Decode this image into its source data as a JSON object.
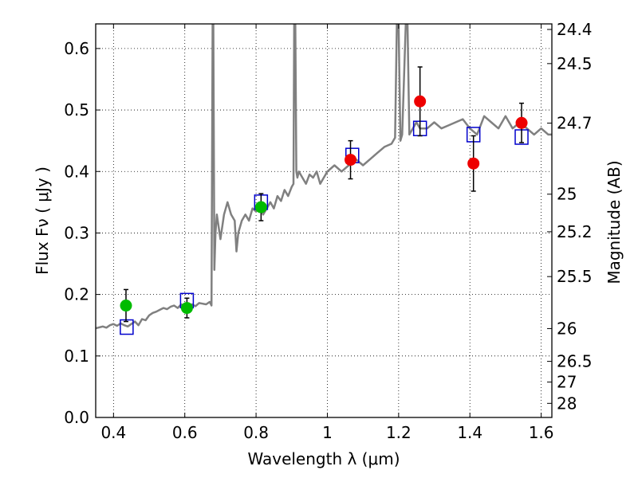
{
  "chart_data": {
    "type": "scatter",
    "xlabel": "Wavelength  λ (μm)",
    "ylabel": "Flux  Fν  ( μJy )",
    "y2label": "Magnitude (AB)",
    "xlim": [
      0.35,
      1.63
    ],
    "ylim": [
      0.0,
      0.64
    ],
    "grid": true,
    "x_ticks": [
      0.4,
      0.6,
      0.8,
      1.0,
      1.2,
      1.4,
      1.6
    ],
    "x_tick_labels": [
      "0.4",
      "0.6",
      "0.8",
      "1",
      "1.2",
      "1.4",
      "1.6"
    ],
    "y_ticks": [
      0.0,
      0.1,
      0.2,
      0.3,
      0.4,
      0.5,
      0.6
    ],
    "y_tick_labels": [
      "0.0",
      "0.1",
      "0.2",
      "0.3",
      "0.4",
      "0.5",
      "0.6"
    ],
    "mag_ticks": [
      24.4,
      24.5,
      24.7,
      25,
      25.2,
      25.5,
      26,
      26.5,
      27,
      28
    ],
    "mag_tick_labels": [
      "24.4",
      "24.5",
      "24.7",
      "25",
      "25.2",
      "25.5",
      "26",
      "26.5",
      "27",
      "28"
    ],
    "series": [
      {
        "kind": "points-with-errors",
        "color": "#00bb00",
        "points": [
          {
            "x": 0.435,
            "y": 0.182,
            "err": 0.026
          },
          {
            "x": 0.606,
            "y": 0.178,
            "err": 0.016
          },
          {
            "x": 0.814,
            "y": 0.342,
            "err": 0.022
          }
        ]
      },
      {
        "kind": "points-with-errors",
        "color": "#ee0000",
        "points": [
          {
            "x": 1.065,
            "y": 0.419,
            "err": 0.031
          },
          {
            "x": 1.26,
            "y": 0.514,
            "err": 0.056
          },
          {
            "x": 1.41,
            "y": 0.413,
            "err": 0.045
          },
          {
            "x": 1.545,
            "y": 0.479,
            "err": 0.032
          }
        ]
      },
      {
        "kind": "open-squares",
        "color": "#0000cc",
        "points": [
          {
            "x": 0.437,
            "y": 0.147
          },
          {
            "x": 0.606,
            "y": 0.19
          },
          {
            "x": 0.814,
            "y": 0.35
          },
          {
            "x": 1.07,
            "y": 0.426
          },
          {
            "x": 1.26,
            "y": 0.47
          },
          {
            "x": 1.41,
            "y": 0.46
          },
          {
            "x": 1.545,
            "y": 0.456
          }
        ]
      },
      {
        "kind": "spectrum-line",
        "color": "#808080",
        "x": [
          0.35,
          0.37,
          0.38,
          0.39,
          0.4,
          0.41,
          0.42,
          0.43,
          0.44,
          0.45,
          0.46,
          0.47,
          0.48,
          0.49,
          0.5,
          0.51,
          0.52,
          0.53,
          0.54,
          0.55,
          0.56,
          0.57,
          0.58,
          0.59,
          0.6,
          0.61,
          0.62,
          0.63,
          0.64,
          0.65,
          0.66,
          0.67,
          0.675,
          0.678,
          0.68,
          0.683,
          0.686,
          0.69,
          0.7,
          0.71,
          0.72,
          0.73,
          0.74,
          0.745,
          0.75,
          0.76,
          0.77,
          0.78,
          0.79,
          0.8,
          0.81,
          0.82,
          0.83,
          0.84,
          0.85,
          0.86,
          0.87,
          0.88,
          0.89,
          0.9,
          0.905,
          0.907,
          0.91,
          0.913,
          0.916,
          0.92,
          0.93,
          0.94,
          0.95,
          0.96,
          0.97,
          0.98,
          0.99,
          1.0,
          1.02,
          1.04,
          1.06,
          1.08,
          1.1,
          1.12,
          1.14,
          1.16,
          1.18,
          1.19,
          1.195,
          1.2,
          1.205,
          1.21,
          1.22,
          1.225,
          1.23,
          1.24,
          1.25,
          1.26,
          1.28,
          1.3,
          1.32,
          1.34,
          1.36,
          1.38,
          1.4,
          1.42,
          1.44,
          1.46,
          1.48,
          1.5,
          1.52,
          1.54,
          1.56,
          1.58,
          1.6,
          1.62,
          1.63
        ],
        "y": [
          0.145,
          0.148,
          0.146,
          0.15,
          0.152,
          0.149,
          0.153,
          0.15,
          0.148,
          0.152,
          0.156,
          0.15,
          0.16,
          0.158,
          0.166,
          0.17,
          0.172,
          0.175,
          0.178,
          0.176,
          0.18,
          0.182,
          0.178,
          0.184,
          0.182,
          0.183,
          0.184,
          0.181,
          0.186,
          0.185,
          0.184,
          0.188,
          0.182,
          0.64,
          0.64,
          0.24,
          0.3,
          0.33,
          0.29,
          0.33,
          0.35,
          0.33,
          0.32,
          0.27,
          0.3,
          0.32,
          0.33,
          0.32,
          0.34,
          0.335,
          0.345,
          0.33,
          0.34,
          0.35,
          0.34,
          0.36,
          0.352,
          0.37,
          0.36,
          0.375,
          0.38,
          0.64,
          0.64,
          0.4,
          0.39,
          0.4,
          0.39,
          0.38,
          0.395,
          0.39,
          0.4,
          0.38,
          0.39,
          0.4,
          0.41,
          0.4,
          0.41,
          0.42,
          0.41,
          0.42,
          0.43,
          0.44,
          0.445,
          0.455,
          0.64,
          0.64,
          0.45,
          0.46,
          0.64,
          0.64,
          0.46,
          0.47,
          0.48,
          0.47,
          0.47,
          0.48,
          0.47,
          0.475,
          0.48,
          0.485,
          0.47,
          0.46,
          0.49,
          0.48,
          0.47,
          0.49,
          0.47,
          0.48,
          0.47,
          0.46,
          0.47,
          0.46,
          0.46
        ]
      }
    ]
  }
}
